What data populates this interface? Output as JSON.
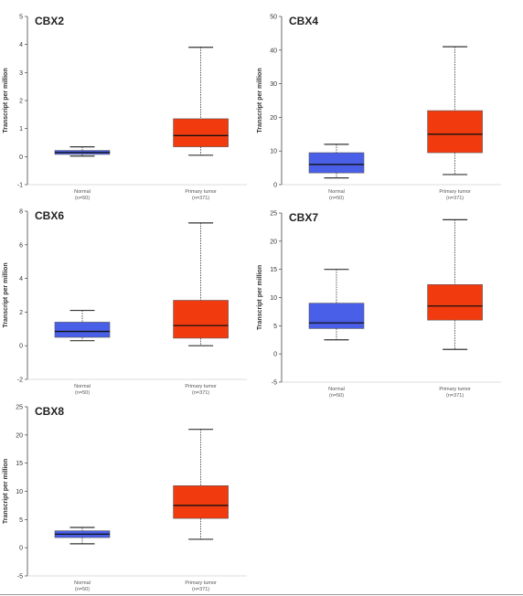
{
  "chart_data": [
    {
      "type": "box",
      "title": "CBX2",
      "ylabel": "Transcript per million",
      "ylim": [
        -1,
        5
      ],
      "yticks": [
        -1,
        0,
        1,
        2,
        3,
        4,
        5
      ],
      "categories": [
        {
          "label": "Normal",
          "n": "(n=50)"
        },
        {
          "label": "Primary tumor",
          "n": "(n=371)"
        }
      ],
      "boxes": [
        {
          "min": 0.02,
          "q1": 0.08,
          "median": 0.15,
          "q3": 0.22,
          "max": 0.35,
          "color": "#4a5fe8"
        },
        {
          "min": 0.05,
          "q1": 0.35,
          "median": 0.75,
          "q3": 1.35,
          "max": 3.9,
          "color": "#f23a0f"
        }
      ]
    },
    {
      "type": "box",
      "title": "CBX4",
      "ylabel": "Transcript per million",
      "ylim": [
        0,
        50
      ],
      "yticks": [
        0,
        10,
        20,
        30,
        40,
        50
      ],
      "categories": [
        {
          "label": "Normal",
          "n": "(n=50)"
        },
        {
          "label": "Primary tumor",
          "n": "(n=371)"
        }
      ],
      "boxes": [
        {
          "min": 2,
          "q1": 3.5,
          "median": 6,
          "q3": 9.5,
          "max": 12,
          "color": "#4a5fe8"
        },
        {
          "min": 3,
          "q1": 9.5,
          "median": 15,
          "q3": 22,
          "max": 41,
          "color": "#f23a0f"
        }
      ]
    },
    {
      "type": "box",
      "title": "CBX6",
      "ylabel": "Transcript per million",
      "ylim": [
        -2,
        8
      ],
      "yticks": [
        -2,
        0,
        2,
        4,
        6,
        8
      ],
      "categories": [
        {
          "label": "Normal",
          "n": "(n=50)"
        },
        {
          "label": "Primary tumor",
          "n": "(n=371)"
        }
      ],
      "boxes": [
        {
          "min": 0.3,
          "q1": 0.5,
          "median": 0.85,
          "q3": 1.4,
          "max": 2.1,
          "color": "#4a5fe8"
        },
        {
          "min": 0.0,
          "q1": 0.45,
          "median": 1.2,
          "q3": 2.7,
          "max": 7.3,
          "color": "#f23a0f"
        }
      ]
    },
    {
      "type": "box",
      "title": "CBX7",
      "ylabel": "Transcript per million",
      "ylim": [
        -5,
        25
      ],
      "yticks": [
        -5,
        0,
        5,
        10,
        15,
        20,
        25
      ],
      "categories": [
        {
          "label": "Normal",
          "n": "(n=50)"
        },
        {
          "label": "Primary tumor",
          "n": "(n=371)"
        }
      ],
      "boxes": [
        {
          "min": 2.5,
          "q1": 4.5,
          "median": 5.5,
          "q3": 9,
          "max": 15,
          "color": "#4a5fe8"
        },
        {
          "min": 0.8,
          "q1": 6,
          "median": 8.5,
          "q3": 12.3,
          "max": 23.8,
          "color": "#f23a0f"
        }
      ]
    },
    {
      "type": "box",
      "title": "CBX8",
      "ylabel": "Transcript per million",
      "ylim": [
        -5,
        25
      ],
      "yticks": [
        -5,
        0,
        5,
        10,
        15,
        20,
        25
      ],
      "categories": [
        {
          "label": "Normal",
          "n": "(n=50)"
        },
        {
          "label": "Primary tumor",
          "n": "(n=371)"
        }
      ],
      "boxes": [
        {
          "min": 0.7,
          "q1": 1.8,
          "median": 2.4,
          "q3": 3,
          "max": 3.6,
          "color": "#4a5fe8"
        },
        {
          "min": 1.5,
          "q1": 5.2,
          "median": 7.5,
          "q3": 11,
          "max": 21,
          "color": "#f23a0f"
        }
      ]
    }
  ]
}
